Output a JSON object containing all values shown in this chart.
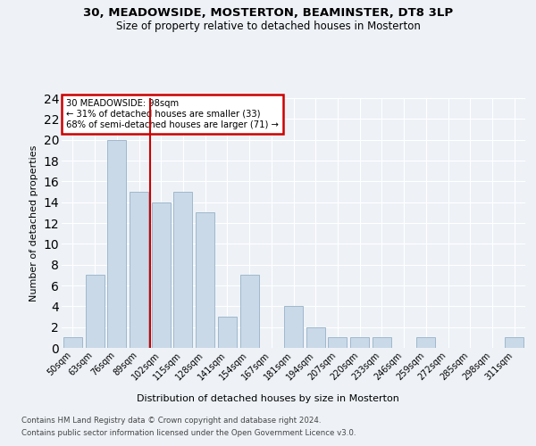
{
  "title1": "30, MEADOWSIDE, MOSTERTON, BEAMINSTER, DT8 3LP",
  "title2": "Size of property relative to detached houses in Mosterton",
  "xlabel": "Distribution of detached houses by size in Mosterton",
  "ylabel": "Number of detached properties",
  "categories": [
    "50sqm",
    "63sqm",
    "76sqm",
    "89sqm",
    "102sqm",
    "115sqm",
    "128sqm",
    "141sqm",
    "154sqm",
    "167sqm",
    "181sqm",
    "194sqm",
    "207sqm",
    "220sqm",
    "233sqm",
    "246sqm",
    "259sqm",
    "272sqm",
    "285sqm",
    "298sqm",
    "311sqm"
  ],
  "values": [
    1,
    7,
    20,
    15,
    14,
    15,
    13,
    3,
    7,
    0,
    4,
    2,
    1,
    1,
    1,
    0,
    1,
    0,
    0,
    0,
    1
  ],
  "bar_color": "#c9d9e8",
  "bar_edge_color": "#a0b8cc",
  "vline_x_index": 4,
  "vline_color": "#cc0000",
  "annotation_title": "30 MEADOWSIDE: 98sqm",
  "annotation_line1": "← 31% of detached houses are smaller (33)",
  "annotation_line2": "68% of semi-detached houses are larger (71) →",
  "annotation_box_color": "#cc0000",
  "ylim": [
    0,
    24
  ],
  "yticks": [
    0,
    2,
    4,
    6,
    8,
    10,
    12,
    14,
    16,
    18,
    20,
    22,
    24
  ],
  "footnote1": "Contains HM Land Registry data © Crown copyright and database right 2024.",
  "footnote2": "Contains public sector information licensed under the Open Government Licence v3.0.",
  "bg_color": "#eef2f7",
  "plot_bg_color": "#eef2f7"
}
